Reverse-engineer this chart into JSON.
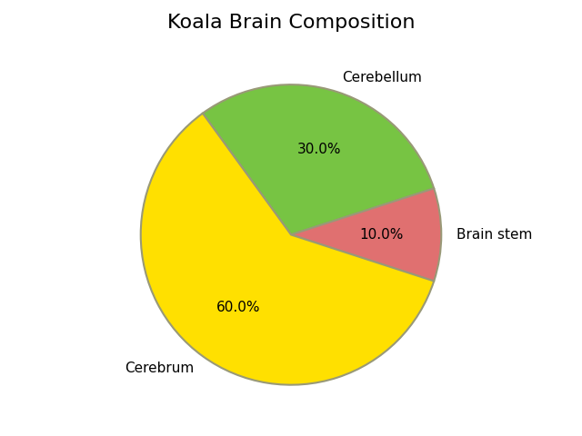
{
  "title": "Koala Brain Composition",
  "labels": [
    "Cerebellum",
    "Brain stem",
    "Cerebrum"
  ],
  "sizes": [
    30,
    10,
    60
  ],
  "colors": [
    "#77C443",
    "#E07070",
    "#FFE000"
  ],
  "startangle": 126,
  "title_fontsize": 16,
  "wedge_edgecolor": "#999977",
  "wedge_linewidth": 1.5,
  "label_fontsize": 11,
  "pct_fontsize": 11
}
